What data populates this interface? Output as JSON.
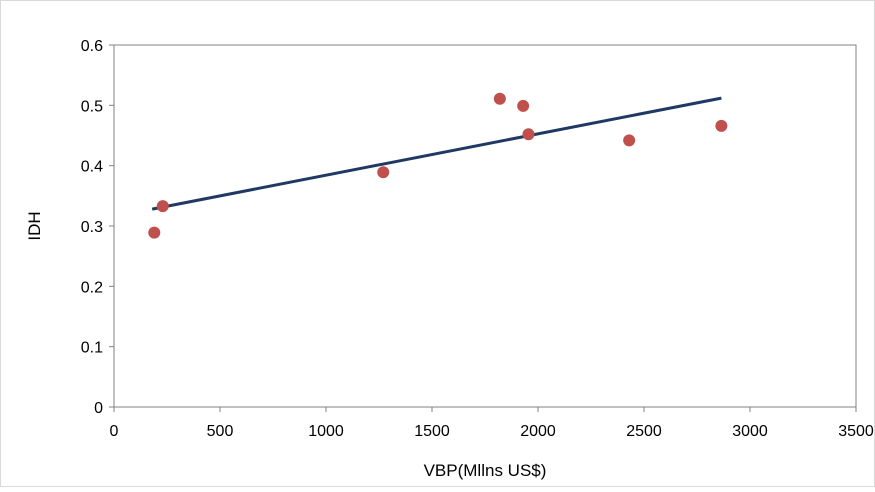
{
  "chart_data": {
    "type": "scatter",
    "title": "",
    "xlabel": "VBP(Mllns US$)",
    "ylabel": "IDH",
    "xlim": [
      0,
      3500
    ],
    "ylim": [
      0,
      0.6
    ],
    "x_ticks": [
      0,
      500,
      1000,
      1500,
      2000,
      2500,
      3000,
      3500
    ],
    "y_ticks": [
      0,
      0.1,
      0.2,
      0.3,
      0.4,
      0.5,
      0.6
    ],
    "x_tick_labels": [
      "0",
      "500",
      "1000",
      "1500",
      "2000",
      "2500",
      "3000",
      "3500"
    ],
    "y_tick_labels": [
      "0",
      "0.1",
      "0.2",
      "0.3",
      "0.4",
      "0.5",
      "0.6"
    ],
    "grid": false,
    "legend": "none",
    "series": [
      {
        "type": "scatter",
        "color": "#c0504d",
        "points": [
          {
            "x": 190,
            "y": 0.289
          },
          {
            "x": 230,
            "y": 0.333
          },
          {
            "x": 1270,
            "y": 0.389
          },
          {
            "x": 1820,
            "y": 0.511
          },
          {
            "x": 1930,
            "y": 0.499
          },
          {
            "x": 1955,
            "y": 0.452
          },
          {
            "x": 2430,
            "y": 0.442
          },
          {
            "x": 2865,
            "y": 0.466
          }
        ]
      },
      {
        "type": "trendline",
        "color": "#1f3864",
        "points": [
          {
            "x": 180,
            "y": 0.328
          },
          {
            "x": 2865,
            "y": 0.512
          }
        ]
      }
    ]
  }
}
